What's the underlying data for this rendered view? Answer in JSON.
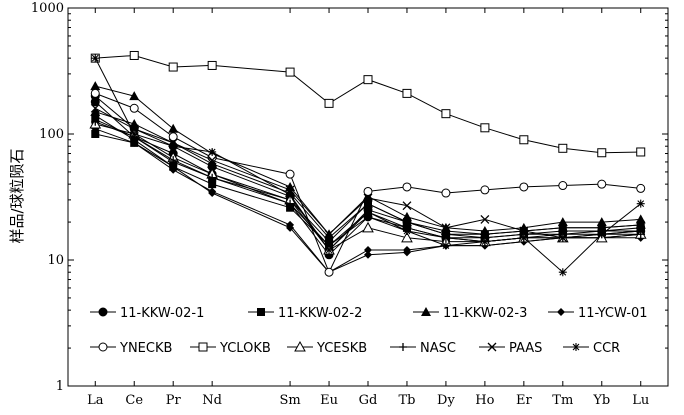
{
  "chart_data": {
    "type": "line",
    "title": "",
    "xlabel": "",
    "ylabel": "样品/球粒陨石",
    "yscale": "log",
    "ylim": [
      1,
      1000
    ],
    "yticks": [
      "1",
      "10",
      "100",
      "1000"
    ],
    "grid": false,
    "legend_position": "inside-bottom",
    "categories": [
      "La",
      "Ce",
      "Pr",
      "Nd",
      "Sm",
      "Eu",
      "Gd",
      "Tb",
      "Dy",
      "Ho",
      "Er",
      "Tm",
      "Yb",
      "Lu"
    ],
    "x": [
      1,
      2,
      3,
      4,
      6,
      7,
      8,
      9,
      10,
      11,
      12,
      13,
      14,
      15
    ],
    "series": [
      {
        "name": "11-KKW-02-1",
        "marker": "circle-filled",
        "values": [
          200,
          110,
          80,
          55,
          32,
          12,
          25,
          20,
          16,
          15,
          16,
          17,
          17,
          18
        ]
      },
      {
        "name": "11-KKW-02-1",
        "marker": "circle-filled",
        "values": [
          180,
          95,
          70,
          48,
          28,
          11,
          22,
          18,
          15,
          14,
          15,
          16,
          16,
          17
        ]
      },
      {
        "name": "11-KKW-02-2",
        "marker": "square-filled",
        "values": [
          130,
          95,
          60,
          45,
          30,
          14,
          28,
          20,
          16,
          16,
          17,
          18,
          18,
          19
        ]
      },
      {
        "name": "11-KKW-02-2",
        "marker": "square-filled",
        "values": [
          100,
          85,
          55,
          40,
          26,
          13,
          24,
          18,
          15,
          15,
          16,
          16,
          17,
          17
        ]
      },
      {
        "name": "11-KKW-02-3",
        "marker": "triangle-filled",
        "values": [
          240,
          200,
          110,
          70,
          38,
          16,
          32,
          22,
          18,
          17,
          18,
          20,
          20,
          21
        ]
      },
      {
        "name": "11-KKW-02-3",
        "marker": "triangle-filled",
        "values": [
          150,
          120,
          85,
          58,
          34,
          15,
          28,
          20,
          17,
          16,
          17,
          18,
          18,
          19
        ]
      },
      {
        "name": "11-YCW-01",
        "marker": "diamond-filled",
        "values": [
          140,
          90,
          55,
          34,
          18,
          8,
          12,
          12,
          13,
          13,
          14,
          15,
          15,
          15
        ]
      },
      {
        "name": "11-YCW-01",
        "marker": "diamond-filled",
        "values": [
          110,
          85,
          52,
          35,
          19,
          8,
          11,
          11.5,
          13,
          13,
          14,
          15,
          15,
          16
        ]
      },
      {
        "name": "YNECKB",
        "marker": "circle-open",
        "values": [
          210,
          160,
          95,
          65,
          48,
          8,
          35,
          38,
          34,
          36,
          38,
          39,
          40,
          37
        ]
      },
      {
        "name": "YCLOKB",
        "marker": "square-open",
        "values": [
          400,
          420,
          340,
          350,
          310,
          175,
          270,
          210,
          145,
          112,
          90,
          77,
          71,
          72
        ]
      },
      {
        "name": "YCESKB",
        "marker": "triangle-open",
        "values": [
          120,
          100,
          65,
          48,
          30,
          12,
          18,
          15,
          14,
          14,
          15,
          15,
          15,
          16
        ]
      },
      {
        "name": "NASC",
        "marker": "plus",
        "values": [
          125,
          95,
          62,
          45,
          28,
          13,
          22,
          17,
          15,
          14,
          15,
          15,
          16,
          16
        ]
      },
      {
        "name": "PAAS",
        "marker": "x",
        "values": [
          160,
          110,
          85,
          62,
          36,
          16,
          31,
          27,
          18,
          21,
          17,
          15,
          16,
          17
        ]
      },
      {
        "name": "CCR",
        "marker": "star",
        "values": [
          400,
          100,
          80,
          72,
          33,
          12,
          24,
          17,
          13,
          14,
          15,
          8,
          16,
          28
        ]
      }
    ],
    "legend": [
      [
        "11-KKW-02-1",
        "11-KKW-02-2",
        "11-KKW-02-3",
        "11-YCW-01"
      ],
      [
        "YNECKB",
        "YCLOKB",
        "YCESKB",
        "NASC",
        "PAAS",
        "CCR"
      ]
    ]
  }
}
